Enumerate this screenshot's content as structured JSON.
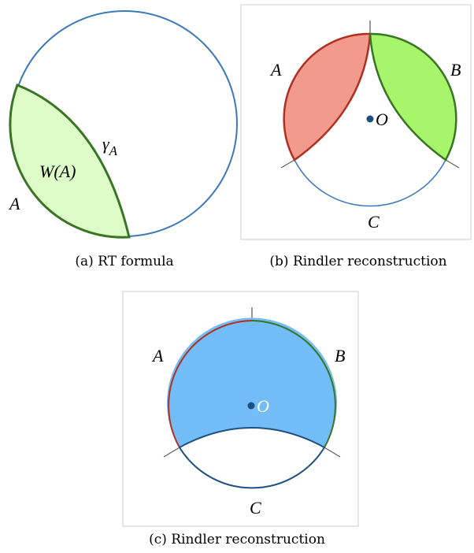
{
  "panels": [
    {
      "caption": "(a) RT formula",
      "labels": {
        "region": "A",
        "wedge": "W(A)",
        "surface": "γ",
        "surface_subscript": "A"
      }
    },
    {
      "caption": "(b) Rindler reconstruction",
      "labels": {
        "region_a": "A",
        "region_b": "B",
        "region_c": "C",
        "point": "O"
      }
    },
    {
      "caption": "(c) Rindler reconstruction",
      "labels": {
        "region_a": "A",
        "region_b": "B",
        "region_c": "C",
        "point": "O"
      }
    }
  ]
}
